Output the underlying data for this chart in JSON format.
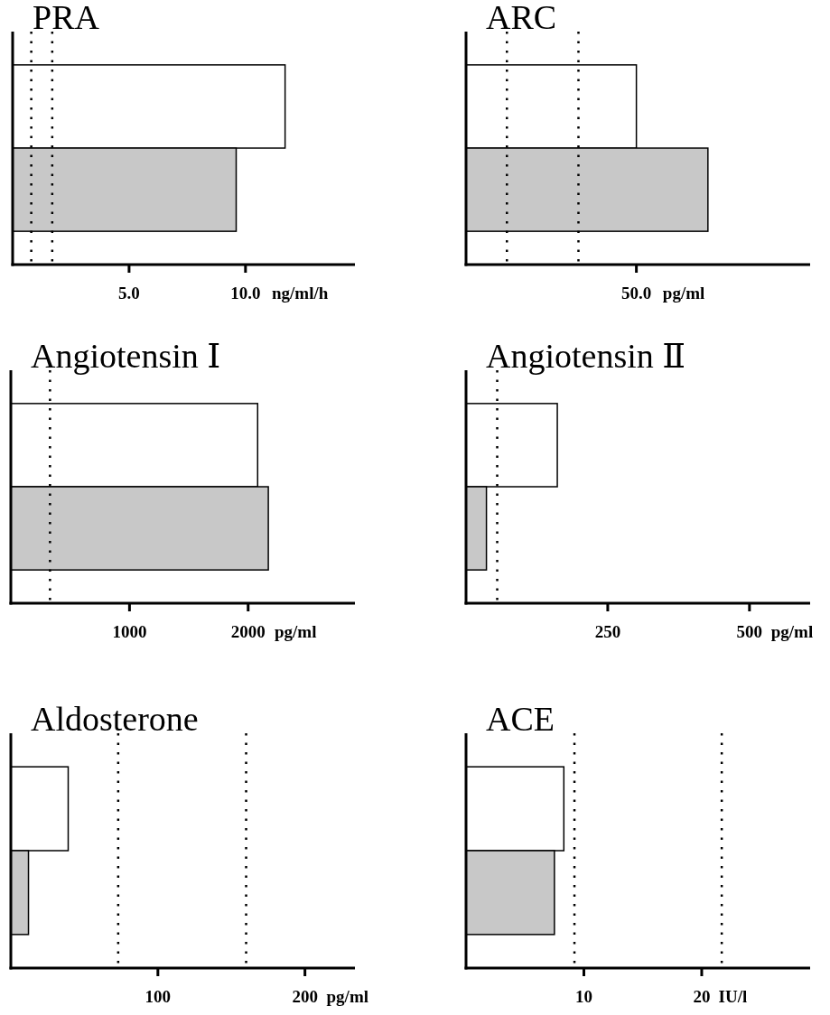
{
  "chart_data": [
    {
      "type": "bar",
      "orientation": "horizontal",
      "title": "PRA",
      "xlabel": "ng/ml/h",
      "categories": [
        null,
        null
      ],
      "values": [
        11.7,
        9.6
      ],
      "colors": [
        "#ffffff",
        "#c8c8c8"
      ],
      "xlim": [
        0,
        14.7
      ],
      "xticks": [
        {
          "value": 5,
          "label": "5.0"
        },
        {
          "value": 10,
          "label": "10.0"
        }
      ],
      "ref_lines": [
        {
          "axis": "x",
          "value": 0.8,
          "color": "#000000",
          "line_style": "dotted"
        },
        {
          "axis": "x",
          "value": 1.7,
          "color": "#000000",
          "line_style": "dotted"
        }
      ]
    },
    {
      "type": "bar",
      "orientation": "horizontal",
      "title": "ARC",
      "xlabel": "pg/ml",
      "categories": [
        null,
        null
      ],
      "values": [
        50,
        71
      ],
      "colors": [
        "#ffffff",
        "#c8c8c8"
      ],
      "xlim": [
        0,
        101
      ],
      "xticks": [
        {
          "value": 50,
          "label": "50.0"
        }
      ],
      "ref_lines": [
        {
          "axis": "x",
          "value": 12,
          "color": "#000000",
          "line_style": "dotted"
        },
        {
          "axis": "x",
          "value": 33,
          "color": "#000000",
          "line_style": "dotted"
        }
      ]
    },
    {
      "type": "bar",
      "orientation": "horizontal",
      "title": "Angiotensin Ⅰ",
      "xlabel": "pg/ml",
      "categories": [
        null,
        null
      ],
      "values": [
        2080,
        2170
      ],
      "colors": [
        "#ffffff",
        "#c8c8c8"
      ],
      "xlim": [
        0,
        2900
      ],
      "xticks": [
        1000,
        2000
      ],
      "ref_lines": [
        {
          "axis": "x",
          "value": 330,
          "color": "#000000",
          "line_style": "dotted"
        }
      ]
    },
    {
      "type": "bar",
      "orientation": "horizontal",
      "title": "Angiotensin Ⅱ",
      "xlabel": "pg/ml",
      "categories": [
        null,
        null
      ],
      "values": [
        161,
        36
      ],
      "colors": [
        "#ffffff",
        "#c8c8c8"
      ],
      "xlim": [
        0,
        607
      ],
      "xticks": [
        250,
        500
      ],
      "ref_lines": [
        {
          "axis": "x",
          "value": 55,
          "color": "#000000",
          "line_style": "dotted"
        }
      ]
    },
    {
      "type": "bar",
      "orientation": "horizontal",
      "title": "Aldosterone",
      "xlabel": "pg/ml",
      "categories": [
        null,
        null
      ],
      "values": [
        39,
        12
      ],
      "colors": [
        "#ffffff",
        "#c8c8c8"
      ],
      "xlim": [
        0,
        234
      ],
      "xticks": [
        100,
        200
      ],
      "ref_lines": [
        {
          "axis": "x",
          "value": 73,
          "color": "#000000",
          "line_style": "dotted"
        },
        {
          "axis": "x",
          "value": 160,
          "color": "#000000",
          "line_style": "dotted"
        }
      ]
    },
    {
      "type": "bar",
      "orientation": "horizontal",
      "title": "ACE",
      "xlabel": "IU/l",
      "categories": [
        null,
        null
      ],
      "values": [
        8.3,
        7.5
      ],
      "colors": [
        "#ffffff",
        "#c8c8c8"
      ],
      "xlim": [
        0,
        29.2
      ],
      "xticks": [
        10,
        20
      ],
      "ref_lines": [
        {
          "axis": "x",
          "value": 9.2,
          "color": "#000000",
          "line_style": "dotted"
        },
        {
          "axis": "x",
          "value": 21.7,
          "color": "#000000",
          "line_style": "dotted"
        }
      ]
    }
  ]
}
